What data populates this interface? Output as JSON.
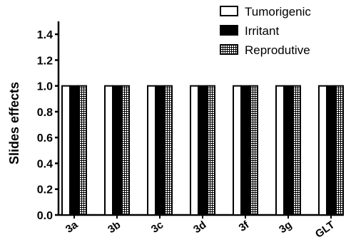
{
  "chart_data": {
    "type": "bar",
    "title": "",
    "xlabel": "",
    "ylabel": "Slides effects",
    "ylim": [
      0,
      1.5
    ],
    "yticks": [
      "0.0",
      "0.2",
      "0.4",
      "0.6",
      "0.8",
      "1.0",
      "1.2",
      "1.4"
    ],
    "categories": [
      "3a",
      "3b",
      "3c",
      "3d",
      "3f",
      "3g",
      "GLT"
    ],
    "series": [
      {
        "name": "Tumorigenic",
        "values": [
          1,
          1,
          1,
          1,
          1,
          1,
          1
        ],
        "fill": "white"
      },
      {
        "name": "Irritant",
        "values": [
          1,
          1,
          1,
          1,
          1,
          1,
          1
        ],
        "fill": "black"
      },
      {
        "name": "Reprodutive",
        "values": [
          1,
          1,
          1,
          1,
          1,
          1,
          1
        ],
        "fill": "grid"
      }
    ],
    "legend_position": "top-right",
    "grid": false
  }
}
